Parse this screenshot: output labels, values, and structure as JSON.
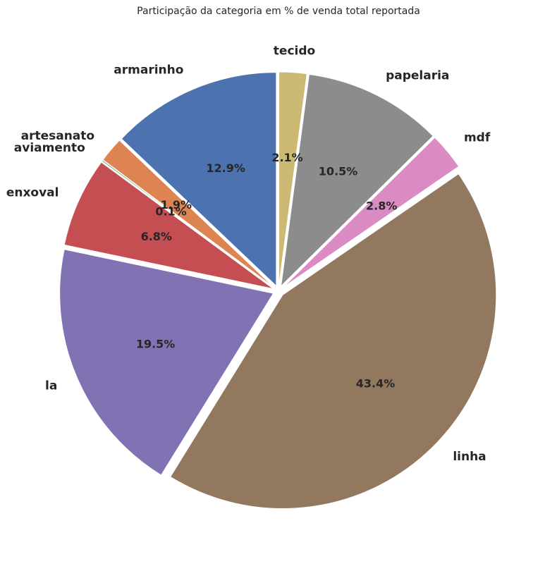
{
  "chart_data": {
    "type": "pie",
    "title": "Participação da categoria em % de venda total reportada",
    "categories": [
      "armarinho",
      "artesanato",
      "aviamento",
      "enxoval",
      "la",
      "linha",
      "mdf",
      "papelaria",
      "tecido"
    ],
    "values": [
      12.9,
      1.9,
      0.1,
      6.8,
      19.5,
      43.4,
      2.8,
      10.5,
      2.1
    ],
    "labels_pct": [
      "12.9%",
      "1.9%",
      "0.1%",
      "6.8%",
      "19.5%",
      "43.4%",
      "2.8%",
      "10.5%",
      "2.1%"
    ],
    "colors": [
      "#4c72b0",
      "#dd8452",
      "#55a868",
      "#c44e52",
      "#8172b3",
      "#937860",
      "#da8bc3",
      "#8c8c8c",
      "#ccb974"
    ],
    "start_angle": 90,
    "direction": "counterclockwise",
    "exploded": true
  }
}
